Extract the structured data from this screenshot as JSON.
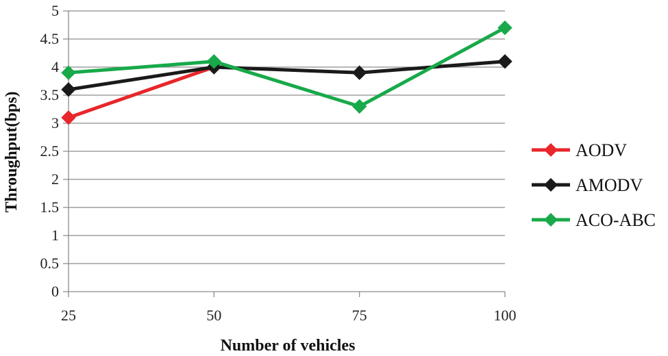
{
  "chart_data": {
    "type": "line",
    "title": "",
    "xlabel": "Number of vehicles",
    "ylabel": "Throughput(bps)",
    "categories": [
      "25",
      "50",
      "75",
      "100"
    ],
    "ylim": [
      0,
      5
    ],
    "yticks": [
      "0",
      "0.5",
      "1",
      "1.5",
      "2",
      "2.5",
      "3",
      "3.5",
      "4",
      "4.5",
      "5"
    ],
    "grid": "horizontal",
    "legend_position": "right",
    "marker": "diamond",
    "series": [
      {
        "name": "AODV",
        "color": "#e8262b",
        "values": [
          3.1,
          4.0,
          null,
          null
        ]
      },
      {
        "name": "AMODV",
        "color": "#1a1a1a",
        "values": [
          3.6,
          4.0,
          3.9,
          4.1
        ]
      },
      {
        "name": "ACO-ABC",
        "color": "#18a94a",
        "values": [
          3.9,
          4.1,
          3.3,
          4.7
        ]
      }
    ]
  }
}
